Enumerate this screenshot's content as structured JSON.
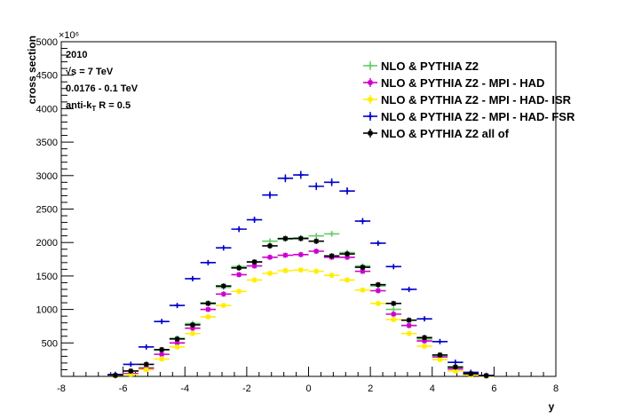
{
  "chart_data": {
    "type": "scatter",
    "xlabel": "y",
    "ylabel": "cross section",
    "y_multiplier": "×10⁶",
    "xlim": [
      -8,
      8
    ],
    "ylim": [
      0,
      5000
    ],
    "x_ticks": [
      -8,
      -6,
      -4,
      -2,
      0,
      2,
      4,
      6,
      8
    ],
    "y_ticks": [
      500,
      1000,
      1500,
      2000,
      2500,
      3000,
      3500,
      4000,
      4500,
      5000
    ],
    "bin_half_width": 0.25,
    "info": {
      "year": "2010",
      "energy": "√s = 7 TeV",
      "range": "0.0176 - 0.1 TeV",
      "algo": "anti-k",
      "algo_sub": "T",
      "algo_rest": " R = 0.5"
    },
    "legend_position": "top-right",
    "x": [
      -6.25,
      -5.75,
      -5.25,
      -4.75,
      -4.25,
      -3.75,
      -3.25,
      -2.75,
      -2.25,
      -1.75,
      -1.25,
      -0.75,
      -0.25,
      0.25,
      0.75,
      1.25,
      1.75,
      2.25,
      2.75,
      3.25,
      3.75,
      4.25,
      4.75,
      5.25,
      5.75
    ],
    "series": [
      {
        "name": "NLO & PYTHIA Z2",
        "color": "#66cc66",
        "marker": "plus",
        "values": [
          10,
          40,
          130,
          390,
          570,
          790,
          1100,
          1330,
          1640,
          1710,
          2020,
          2050,
          2070,
          2100,
          2130,
          1850,
          1650,
          1350,
          1000,
          760,
          560,
          310,
          120,
          40,
          10
        ]
      },
      {
        "name": "NLO & PYTHIA Z2 - MPI - HAD",
        "color": "#cc00cc",
        "marker": "star",
        "values": [
          10,
          40,
          120,
          330,
          500,
          720,
          1000,
          1230,
          1520,
          1650,
          1780,
          1810,
          1820,
          1870,
          1780,
          1780,
          1570,
          1280,
          930,
          760,
          530,
          290,
          110,
          30,
          10
        ]
      },
      {
        "name": "NLO & PYTHIA Z2 - MPI - HAD- ISR",
        "color": "#ffee00",
        "marker": "star",
        "values": [
          10,
          30,
          100,
          260,
          440,
          640,
          890,
          1060,
          1270,
          1440,
          1540,
          1580,
          1590,
          1570,
          1510,
          1440,
          1290,
          1090,
          850,
          640,
          450,
          250,
          80,
          20,
          5
        ]
      },
      {
        "name": "NLO & PYTHIA Z2 - MPI - HAD- FSR",
        "color": "#0000cc",
        "marker": "plus",
        "values": [
          30,
          180,
          440,
          820,
          1060,
          1460,
          1700,
          1920,
          2200,
          2340,
          2710,
          2960,
          3010,
          2840,
          2900,
          2770,
          2320,
          1990,
          1640,
          1300,
          860,
          520,
          210,
          60,
          15
        ]
      },
      {
        "name": "NLO & PYTHIA Z2 all of",
        "color": "#000000",
        "marker": "star",
        "values": [
          15,
          80,
          180,
          400,
          560,
          770,
          1090,
          1350,
          1620,
          1710,
          1950,
          2060,
          2060,
          2020,
          1800,
          1830,
          1630,
          1370,
          1090,
          840,
          580,
          320,
          140,
          40,
          10
        ]
      }
    ]
  }
}
